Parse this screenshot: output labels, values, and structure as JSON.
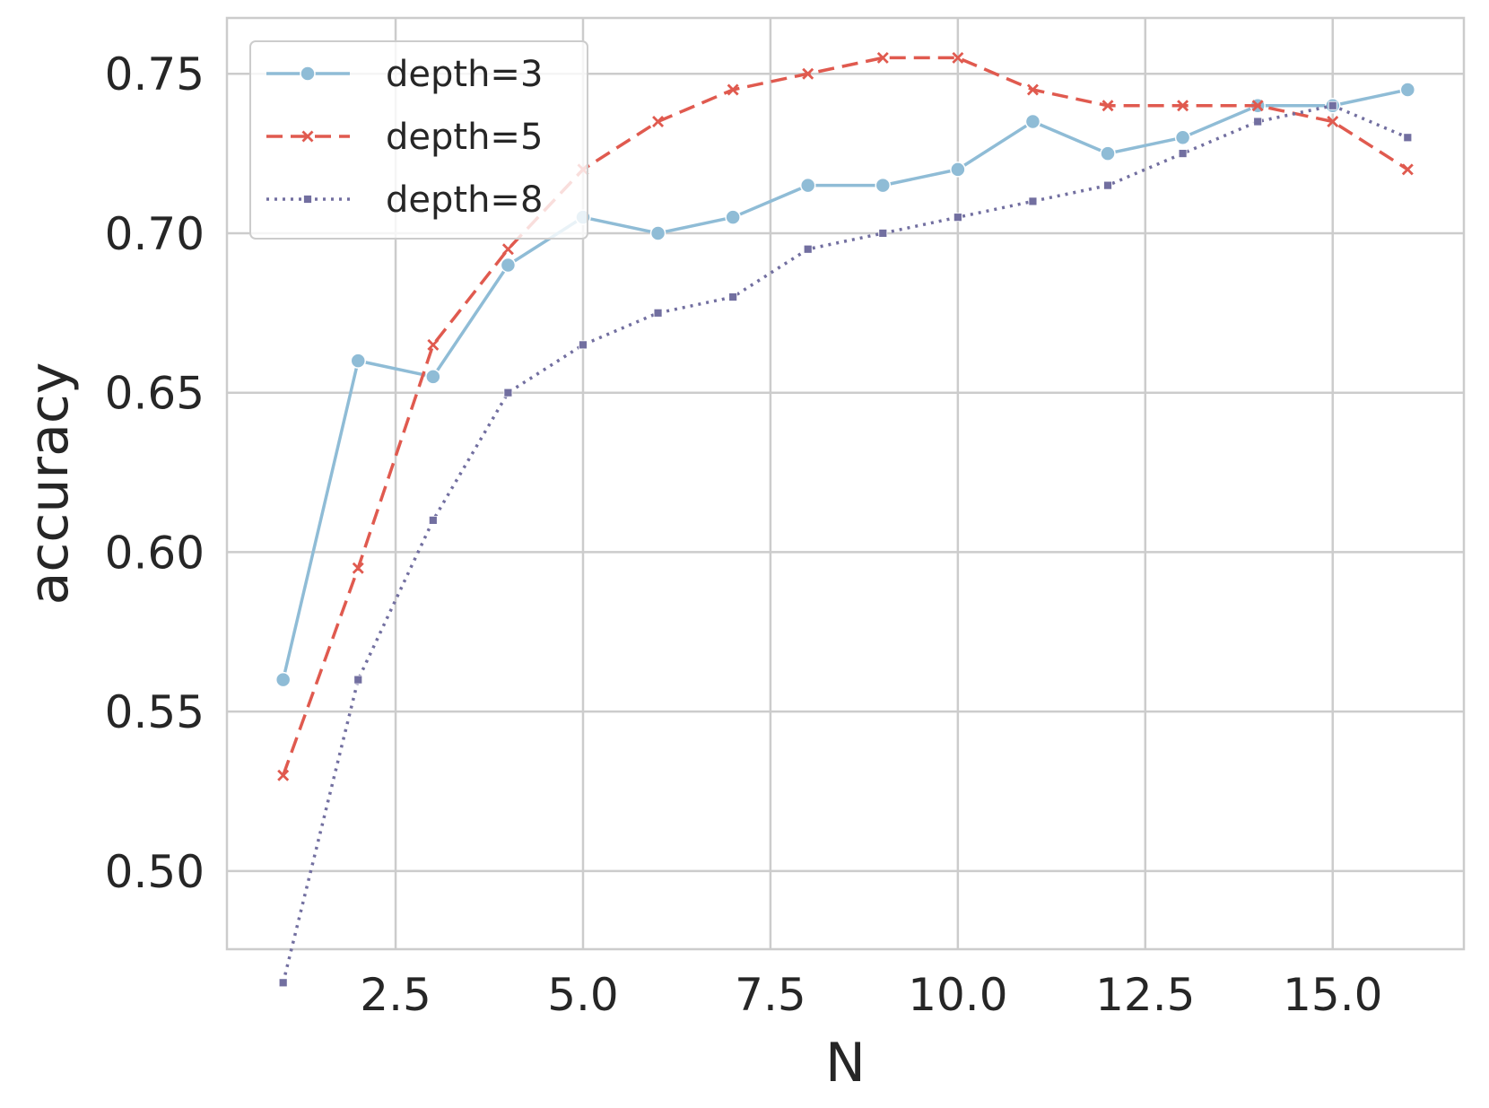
{
  "chart_data": {
    "type": "line",
    "title": "",
    "xlabel": "N",
    "ylabel": "accuracy",
    "xlim": [
      0.25,
      16.75
    ],
    "ylim": [
      0.4755,
      0.7675
    ],
    "xticks": [
      2.5,
      5.0,
      7.5,
      10.0,
      12.5,
      15.0
    ],
    "xtick_labels": [
      "2.5",
      "5.0",
      "7.5",
      "10.0",
      "12.5",
      "15.0"
    ],
    "yticks": [
      0.5,
      0.55,
      0.6,
      0.65,
      0.7,
      0.75
    ],
    "ytick_labels": [
      "0.50",
      "0.55",
      "0.60",
      "0.65",
      "0.70",
      "0.75"
    ],
    "grid": true,
    "legend_position": "top-left",
    "x": [
      1,
      2,
      3,
      4,
      5,
      6,
      7,
      8,
      9,
      10,
      11,
      12,
      13,
      14,
      15,
      16
    ],
    "series": [
      {
        "name": "depth=3",
        "color": "#8fbcd6",
        "style": "solid",
        "marker": "circle",
        "values": [
          0.56,
          0.66,
          0.655,
          0.69,
          0.705,
          0.7,
          0.705,
          0.715,
          0.715,
          0.72,
          0.735,
          0.725,
          0.73,
          0.74,
          0.74,
          0.745
        ]
      },
      {
        "name": "depth=5",
        "color": "#e05a4f",
        "style": "dashed",
        "marker": "x",
        "values": [
          0.53,
          0.595,
          0.665,
          0.695,
          0.72,
          0.735,
          0.745,
          0.75,
          0.755,
          0.755,
          0.745,
          0.74,
          0.74,
          0.74,
          0.735,
          0.72
        ]
      },
      {
        "name": "depth=8",
        "color": "#726fa0",
        "style": "dotted",
        "marker": "square",
        "values": [
          0.465,
          0.56,
          0.61,
          0.65,
          0.665,
          0.675,
          0.68,
          0.695,
          0.7,
          0.705,
          0.71,
          0.715,
          0.725,
          0.735,
          0.74,
          0.73
        ]
      }
    ]
  }
}
